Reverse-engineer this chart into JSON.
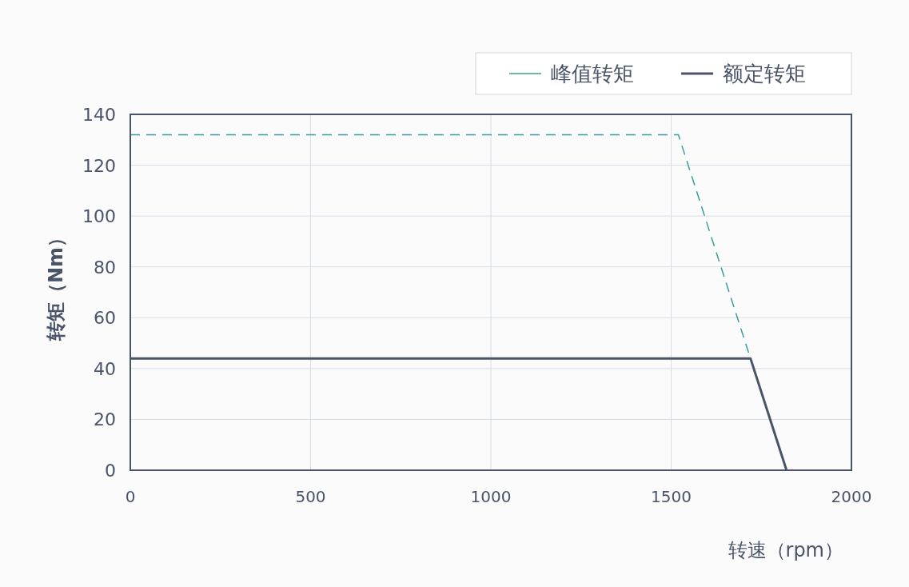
{
  "chart_data": {
    "type": "line",
    "xlabel": "转速（rpm）",
    "ylabel": "转矩（Nm）",
    "xlim": [
      0,
      2000
    ],
    "xticks": [
      0,
      500,
      1000,
      1500,
      2000
    ],
    "ylim": [
      0,
      140
    ],
    "yticks": [
      0,
      20,
      40,
      60,
      80,
      100,
      120,
      140
    ],
    "grid": true,
    "legend": "top right",
    "series": [
      {
        "name": "峰值转矩",
        "color": "#3a9e96",
        "line_style": "dashed",
        "x": [
          0,
          1520,
          1720
        ],
        "values": [
          132,
          132,
          44
        ]
      },
      {
        "name": "额定转矩",
        "color": "#4a5468",
        "line_style": "solid",
        "x": [
          0,
          1720,
          1820
        ],
        "values": [
          44,
          44,
          0
        ]
      }
    ]
  }
}
